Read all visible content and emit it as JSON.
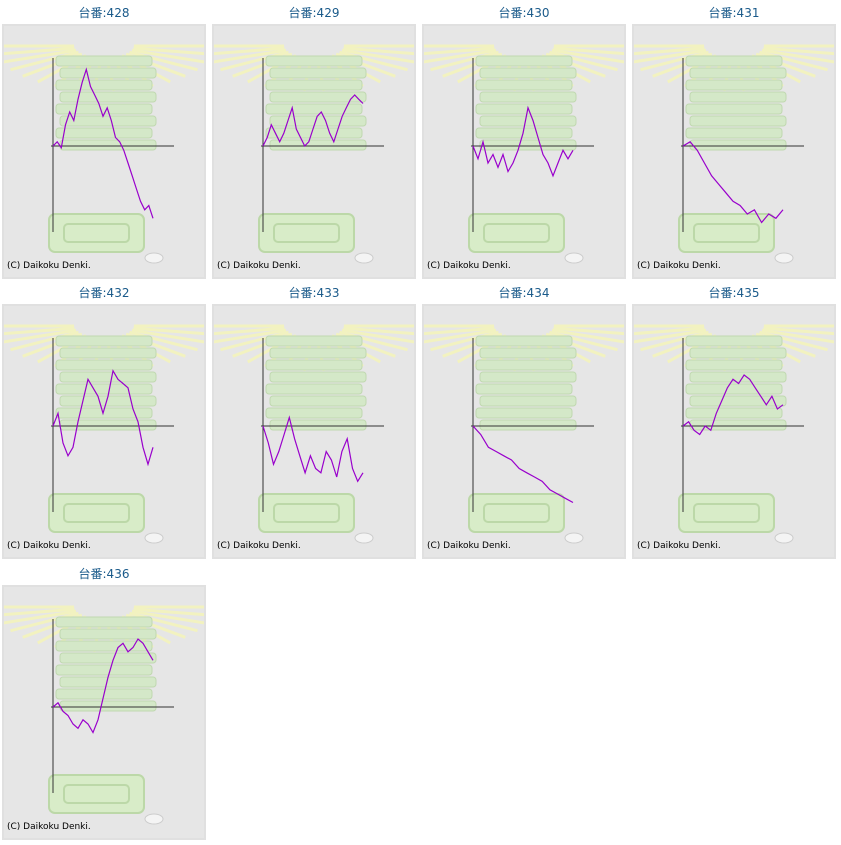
{
  "colors": {
    "line": "#9900cc",
    "axis": "#333333",
    "title": "#1a5a8a",
    "panel_bg": "#e6e6e6"
  },
  "copyright_text": "(C) Daikoku Denki.",
  "chart_data": [
    {
      "type": "line",
      "title": "台番:428",
      "values": [
        0,
        0.05,
        -0.02,
        0.25,
        0.4,
        0.3,
        0.55,
        0.75,
        0.9,
        0.7,
        0.6,
        0.5,
        0.35,
        0.45,
        0.3,
        0.1,
        0.05,
        -0.05,
        -0.2,
        -0.35,
        -0.5,
        -0.65,
        -0.75,
        -0.7,
        -0.85
      ]
    },
    {
      "type": "line",
      "title": "台番:429",
      "values": [
        0,
        0.1,
        0.25,
        0.15,
        0.05,
        0.15,
        0.3,
        0.45,
        0.2,
        0.1,
        0,
        0.05,
        0.2,
        0.35,
        0.4,
        0.3,
        0.15,
        0.05,
        0.2,
        0.35,
        0.45,
        0.55,
        0.6,
        0.55,
        0.5
      ]
    },
    {
      "type": "line",
      "title": "台番:430",
      "values": [
        0,
        -0.15,
        0.05,
        -0.2,
        -0.1,
        -0.25,
        -0.1,
        -0.3,
        -0.2,
        -0.05,
        0.15,
        0.45,
        0.3,
        0.1,
        -0.1,
        -0.2,
        -0.35,
        -0.2,
        -0.05,
        -0.15,
        -0.05
      ]
    },
    {
      "type": "line",
      "title": "台番:431",
      "values": [
        0,
        0.05,
        -0.05,
        -0.2,
        -0.35,
        -0.45,
        -0.55,
        -0.65,
        -0.7,
        -0.8,
        -0.75,
        -0.9,
        -0.8,
        -0.85,
        -0.75
      ]
    },
    {
      "type": "line",
      "title": "台番:432",
      "values": [
        0,
        0.15,
        -0.2,
        -0.35,
        -0.25,
        0.05,
        0.3,
        0.55,
        0.45,
        0.35,
        0.15,
        0.35,
        0.65,
        0.55,
        0.5,
        0.45,
        0.2,
        0.05,
        -0.25,
        -0.45,
        -0.25
      ]
    },
    {
      "type": "line",
      "title": "台番:433",
      "values": [
        0,
        -0.2,
        -0.45,
        -0.3,
        -0.1,
        0.1,
        -0.15,
        -0.35,
        -0.55,
        -0.35,
        -0.5,
        -0.55,
        -0.3,
        -0.4,
        -0.6,
        -0.3,
        -0.15,
        -0.5,
        -0.65,
        -0.55
      ]
    },
    {
      "type": "line",
      "title": "台番:434",
      "values": [
        0,
        -0.1,
        -0.25,
        -0.3,
        -0.35,
        -0.4,
        -0.5,
        -0.55,
        -0.6,
        -0.65,
        -0.75,
        -0.8,
        -0.85,
        -0.9
      ]
    },
    {
      "type": "line",
      "title": "台番:435",
      "values": [
        0,
        0.05,
        -0.05,
        -0.1,
        0,
        -0.05,
        0.15,
        0.3,
        0.45,
        0.55,
        0.5,
        0.6,
        0.55,
        0.45,
        0.35,
        0.25,
        0.35,
        0.2,
        0.25
      ]
    },
    {
      "type": "line",
      "title": "台番:436",
      "values": [
        0,
        0.05,
        -0.05,
        -0.1,
        -0.2,
        -0.25,
        -0.15,
        -0.2,
        -0.3,
        -0.15,
        0.1,
        0.35,
        0.55,
        0.7,
        0.75,
        0.65,
        0.7,
        0.8,
        0.75,
        0.65,
        0.55
      ]
    }
  ]
}
